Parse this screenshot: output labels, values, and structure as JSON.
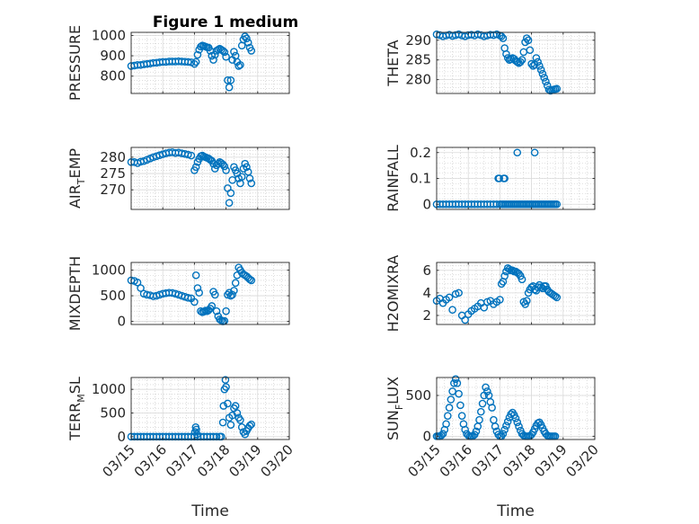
{
  "figure_title": "Figure 1 medium",
  "colors": {
    "marker": "#0072BD",
    "axis": "#262626",
    "grid": "#d9d9d9",
    "minor_grid": "#c6c6c6"
  },
  "x_axis": {
    "label": "Time",
    "range": [
      0,
      5
    ],
    "ticks": [
      0,
      1,
      2,
      3,
      4,
      5
    ],
    "tick_labels": [
      "03/15",
      "03/16",
      "03/17",
      "03/18",
      "03/19",
      "03/20"
    ]
  },
  "chart_data": [
    {
      "type": "scatter",
      "marker": "open-circle",
      "title": "Figure 1 medium",
      "ylabel": "PRESSURE",
      "ylim": [
        715,
        1015
      ],
      "yticks": [
        800,
        900,
        1000
      ],
      "ytick_labels": [
        "800",
        "900",
        "1000"
      ],
      "x": [
        0,
        0.1,
        0.2,
        0.3,
        0.4,
        0.5,
        0.6,
        0.7,
        0.8,
        0.9,
        1.0,
        1.1,
        1.2,
        1.3,
        1.4,
        1.5,
        1.6,
        1.7,
        1.8,
        1.9,
        2.0,
        2.05,
        2.1,
        2.15,
        2.2,
        2.25,
        2.3,
        2.35,
        2.4,
        2.45,
        2.5,
        2.55,
        2.6,
        2.65,
        2.7,
        2.75,
        2.8,
        2.85,
        2.9,
        2.95,
        3.0,
        3.05,
        3.1,
        3.15,
        3.2,
        3.25,
        3.3,
        3.35,
        3.4,
        3.45,
        3.5,
        3.55,
        3.6,
        3.65,
        3.7,
        3.75,
        3.8
      ],
      "y": [
        850,
        852,
        855,
        855,
        858,
        860,
        862,
        865,
        866,
        868,
        870,
        870,
        872,
        872,
        872,
        873,
        872,
        871,
        870,
        868,
        860,
        870,
        905,
        930,
        945,
        950,
        948,
        945,
        942,
        940,
        925,
        900,
        880,
        905,
        925,
        930,
        935,
        930,
        925,
        918,
        895,
        780,
        745,
        780,
        880,
        920,
        900,
        870,
        850,
        855,
        950,
        980,
        995,
        985,
        965,
        940,
        925
      ]
    },
    {
      "type": "scatter",
      "marker": "open-circle",
      "ylabel": "THETA",
      "ylim": [
        276.5,
        292
      ],
      "yticks": [
        280,
        285,
        290
      ],
      "ytick_labels": [
        "280",
        "285",
        "290"
      ],
      "x": [
        0,
        0.1,
        0.2,
        0.3,
        0.4,
        0.5,
        0.6,
        0.7,
        0.8,
        0.9,
        1.0,
        1.1,
        1.2,
        1.3,
        1.4,
        1.5,
        1.6,
        1.7,
        1.8,
        1.9,
        2.0,
        2.05,
        2.1,
        2.15,
        2.2,
        2.25,
        2.3,
        2.35,
        2.4,
        2.45,
        2.5,
        2.55,
        2.6,
        2.65,
        2.7,
        2.75,
        2.8,
        2.85,
        2.9,
        2.95,
        3.0,
        3.05,
        3.1,
        3.15,
        3.2,
        3.25,
        3.3,
        3.35,
        3.4,
        3.45,
        3.5,
        3.55,
        3.6,
        3.65,
        3.7,
        3.75,
        3.8
      ],
      "y": [
        291.5,
        291.3,
        291.0,
        291.2,
        291.4,
        291.1,
        291.3,
        291.5,
        291.2,
        291.0,
        291.3,
        291.4,
        291.2,
        291.5,
        291.3,
        291.0,
        291.2,
        291.4,
        291.3,
        291.5,
        291.2,
        291.0,
        290.5,
        288,
        286.5,
        285.5,
        285,
        285.2,
        285.5,
        285.3,
        284.8,
        284.5,
        284.2,
        284.5,
        285,
        287,
        289.5,
        290.5,
        290,
        287.5,
        284,
        283.5,
        283.8,
        285.5,
        284.5,
        283.5,
        282.5,
        281.5,
        280.5,
        279.5,
        278.5,
        277.5,
        277.2,
        277.4,
        277.5,
        277.6,
        277.7
      ]
    },
    {
      "type": "scatter",
      "marker": "open-circle",
      "ylabel": "AIR",
      "ylabel_sub": "T",
      "ylabel_rest": "EMP",
      "ylim": [
        264,
        283
      ],
      "yticks": [
        270,
        275,
        280
      ],
      "ytick_labels": [
        "270",
        "275",
        "280"
      ],
      "x": [
        0,
        0.1,
        0.2,
        0.3,
        0.4,
        0.5,
        0.6,
        0.7,
        0.8,
        0.9,
        1.0,
        1.1,
        1.2,
        1.3,
        1.4,
        1.5,
        1.6,
        1.7,
        1.8,
        1.9,
        2.0,
        2.05,
        2.1,
        2.15,
        2.2,
        2.25,
        2.3,
        2.35,
        2.4,
        2.45,
        2.5,
        2.55,
        2.6,
        2.65,
        2.7,
        2.75,
        2.8,
        2.85,
        2.9,
        2.95,
        3.0,
        3.05,
        3.1,
        3.15,
        3.2,
        3.25,
        3.3,
        3.35,
        3.4,
        3.45,
        3.5,
        3.55,
        3.6,
        3.65,
        3.7,
        3.75,
        3.8
      ],
      "y": [
        278.5,
        278.5,
        278.2,
        278.6,
        278.8,
        279.2,
        279.6,
        280,
        280.3,
        280.6,
        280.9,
        281.2,
        281.4,
        281.5,
        281.3,
        281.4,
        281.2,
        281,
        280.8,
        280.5,
        276,
        277,
        278.5,
        279.5,
        280.3,
        280.5,
        280.2,
        280,
        279.8,
        279.6,
        279.2,
        278.9,
        278,
        276.5,
        277.5,
        278,
        278.5,
        278.2,
        277.8,
        277.2,
        276,
        270.5,
        266,
        269,
        273,
        277,
        276,
        275,
        273.5,
        272,
        274,
        276.5,
        278,
        277,
        275.5,
        273.5,
        272
      ]
    },
    {
      "type": "scatter",
      "marker": "open-circle",
      "ylabel": "RAINFALL",
      "ylim": [
        -0.02,
        0.22
      ],
      "yticks": [
        0,
        0.1,
        0.2
      ],
      "ytick_labels": [
        "0",
        "0.1",
        "0.2"
      ],
      "x": [
        0,
        0.1,
        0.2,
        0.3,
        0.4,
        0.5,
        0.6,
        0.7,
        0.8,
        0.9,
        1.0,
        1.1,
        1.2,
        1.3,
        1.4,
        1.5,
        1.6,
        1.7,
        1.8,
        1.9,
        2.0,
        2.05,
        2.1,
        2.15,
        2.2,
        2.25,
        2.3,
        2.35,
        2.4,
        2.45,
        2.5,
        2.55,
        2.6,
        2.65,
        2.7,
        2.75,
        2.8,
        2.85,
        2.9,
        2.95,
        3.0,
        3.05,
        3.1,
        3.15,
        3.2,
        3.25,
        3.3,
        3.35,
        3.4,
        3.45,
        3.5,
        3.55,
        3.6,
        3.65,
        3.7,
        3.75,
        3.8,
        1.95,
        1.98,
        2.12,
        2.15,
        2.55,
        3.1
      ],
      "y": [
        0,
        0,
        0,
        0,
        0,
        0,
        0,
        0,
        0,
        0,
        0,
        0,
        0,
        0,
        0,
        0,
        0,
        0,
        0,
        0,
        0,
        0,
        0,
        0,
        0,
        0,
        0,
        0,
        0,
        0,
        0,
        0,
        0,
        0,
        0,
        0,
        0,
        0,
        0,
        0,
        0,
        0,
        0,
        0,
        0,
        0,
        0,
        0,
        0,
        0,
        0,
        0,
        0,
        0,
        0,
        0,
        0,
        0.1,
        0.1,
        0.1,
        0.1,
        0.2,
        0.2
      ]
    },
    {
      "type": "scatter",
      "marker": "open-circle",
      "ylabel": "MIXDEPTH",
      "ylim": [
        -60,
        1150
      ],
      "yticks": [
        0,
        500,
        1000
      ],
      "ytick_labels": [
        "0",
        "500",
        "1000"
      ],
      "x": [
        0,
        0.1,
        0.2,
        0.3,
        0.4,
        0.5,
        0.6,
        0.7,
        0.8,
        0.9,
        1.0,
        1.1,
        1.2,
        1.3,
        1.4,
        1.5,
        1.6,
        1.7,
        1.8,
        1.9,
        2.0,
        2.05,
        2.1,
        2.15,
        2.2,
        2.25,
        2.3,
        2.35,
        2.4,
        2.45,
        2.5,
        2.55,
        2.6,
        2.65,
        2.7,
        2.75,
        2.8,
        2.85,
        2.9,
        2.95,
        3.0,
        3.05,
        3.1,
        3.15,
        3.2,
        3.25,
        3.3,
        3.35,
        3.4,
        3.45,
        3.5,
        3.55,
        3.6,
        3.65,
        3.7,
        3.75,
        3.8
      ],
      "y": [
        800,
        790,
        760,
        650,
        540,
        520,
        510,
        490,
        500,
        520,
        540,
        550,
        560,
        555,
        540,
        520,
        500,
        480,
        460,
        450,
        380,
        900,
        650,
        560,
        200,
        180,
        190,
        210,
        200,
        220,
        250,
        300,
        580,
        520,
        200,
        100,
        40,
        20,
        0,
        10,
        200,
        520,
        560,
        500,
        520,
        600,
        750,
        900,
        1050,
        1000,
        950,
        920,
        900,
        880,
        850,
        820,
        800
      ]
    },
    {
      "type": "scatter",
      "marker": "open-circle",
      "ylabel": "H2OMIXRA",
      "ylim": [
        1.2,
        6.7
      ],
      "yticks": [
        2,
        4,
        6
      ],
      "ytick_labels": [
        "2",
        "4",
        "6"
      ],
      "x": [
        0,
        0.1,
        0.2,
        0.3,
        0.4,
        0.5,
        0.6,
        0.7,
        0.8,
        0.9,
        1.0,
        1.1,
        1.2,
        1.3,
        1.4,
        1.5,
        1.6,
        1.7,
        1.8,
        1.9,
        2.0,
        2.05,
        2.1,
        2.15,
        2.2,
        2.25,
        2.3,
        2.35,
        2.4,
        2.45,
        2.5,
        2.55,
        2.6,
        2.65,
        2.7,
        2.75,
        2.8,
        2.85,
        2.9,
        2.95,
        3.0,
        3.05,
        3.1,
        3.15,
        3.2,
        3.25,
        3.3,
        3.35,
        3.4,
        3.45,
        3.5,
        3.55,
        3.6,
        3.65,
        3.7,
        3.75,
        3.8
      ],
      "y": [
        3.3,
        3.5,
        3.1,
        3.4,
        3.6,
        2.5,
        3.9,
        4.0,
        2.0,
        1.6,
        2.1,
        2.4,
        2.6,
        2.8,
        3.1,
        2.7,
        3.2,
        3.3,
        3.0,
        3.2,
        3.4,
        4.8,
        5.0,
        5.5,
        5.9,
        6.2,
        6.1,
        6.0,
        6.0,
        5.9,
        5.9,
        5.8,
        5.7,
        5.5,
        5.2,
        3.2,
        3.0,
        3.3,
        4.0,
        4.3,
        4.5,
        4.6,
        4.3,
        4.2,
        4.5,
        4.7,
        4.5,
        4.4,
        4.6,
        4.6,
        4.3,
        4.1,
        4.0,
        3.9,
        3.8,
        3.7,
        3.6
      ]
    },
    {
      "type": "scatter",
      "marker": "open-circle",
      "ylabel": "TERR",
      "ylabel_sub": "M",
      "ylabel_rest": "SL",
      "ylim": [
        -60,
        1250
      ],
      "yticks": [
        0,
        500,
        1000
      ],
      "ytick_labels": [
        "0",
        "500",
        "1000"
      ],
      "x": [
        0,
        0.1,
        0.2,
        0.3,
        0.4,
        0.5,
        0.6,
        0.7,
        0.8,
        0.9,
        1.0,
        1.1,
        1.2,
        1.3,
        1.4,
        1.5,
        1.6,
        1.7,
        1.8,
        1.9,
        2.0,
        2.02,
        2.04,
        2.06,
        2.08,
        2.1,
        2.2,
        2.3,
        2.4,
        2.5,
        2.6,
        2.7,
        2.8,
        2.85,
        2.9,
        2.92,
        2.95,
        2.98,
        3.0,
        3.05,
        3.1,
        3.15,
        3.2,
        3.25,
        3.3,
        3.35,
        3.4,
        3.45,
        3.5,
        3.55,
        3.6,
        3.65,
        3.7,
        3.75,
        3.8
      ],
      "y": [
        0,
        0,
        0,
        0,
        0,
        0,
        0,
        0,
        0,
        0,
        0,
        0,
        0,
        0,
        0,
        0,
        0,
        0,
        0,
        0,
        0,
        100,
        200,
        150,
        50,
        0,
        0,
        0,
        0,
        0,
        0,
        0,
        0,
        0,
        300,
        650,
        1000,
        1200,
        1050,
        700,
        400,
        250,
        450,
        600,
        650,
        500,
        400,
        350,
        200,
        100,
        50,
        120,
        180,
        230,
        260
      ]
    },
    {
      "type": "scatter",
      "marker": "open-circle",
      "ylabel": "SUN",
      "ylabel_sub": "F",
      "ylabel_rest": "LUX",
      "ylim": [
        -40,
        720
      ],
      "yticks": [
        0,
        500
      ],
      "ytick_labels": [
        "0",
        "500"
      ],
      "x": [
        0,
        0.05,
        0.1,
        0.15,
        0.2,
        0.25,
        0.3,
        0.35,
        0.4,
        0.45,
        0.5,
        0.55,
        0.6,
        0.65,
        0.7,
        0.75,
        0.8,
        0.85,
        0.9,
        0.95,
        1.0,
        1.05,
        1.1,
        1.15,
        1.2,
        1.25,
        1.3,
        1.35,
        1.4,
        1.45,
        1.5,
        1.55,
        1.6,
        1.65,
        1.7,
        1.75,
        1.8,
        1.85,
        1.9,
        1.95,
        2.0,
        2.05,
        2.1,
        2.15,
        2.2,
        2.25,
        2.3,
        2.35,
        2.4,
        2.45,
        2.5,
        2.55,
        2.6,
        2.65,
        2.7,
        2.75,
        2.8,
        2.85,
        2.9,
        2.95,
        3.0,
        3.05,
        3.1,
        3.15,
        3.2,
        3.25,
        3.3,
        3.35,
        3.4,
        3.45,
        3.5,
        3.55,
        3.6,
        3.65,
        3.7,
        3.75
      ],
      "y": [
        0,
        0,
        0,
        10,
        30,
        80,
        150,
        250,
        350,
        450,
        550,
        650,
        700,
        650,
        520,
        380,
        250,
        150,
        80,
        30,
        10,
        0,
        0,
        5,
        20,
        60,
        120,
        200,
        300,
        400,
        500,
        600,
        550,
        500,
        420,
        350,
        200,
        120,
        60,
        20,
        0,
        0,
        30,
        80,
        130,
        180,
        230,
        270,
        290,
        260,
        220,
        170,
        120,
        70,
        30,
        10,
        0,
        0,
        0,
        5,
        20,
        50,
        90,
        130,
        160,
        170,
        140,
        100,
        60,
        30,
        10,
        0,
        0,
        0,
        0,
        0
      ]
    }
  ]
}
